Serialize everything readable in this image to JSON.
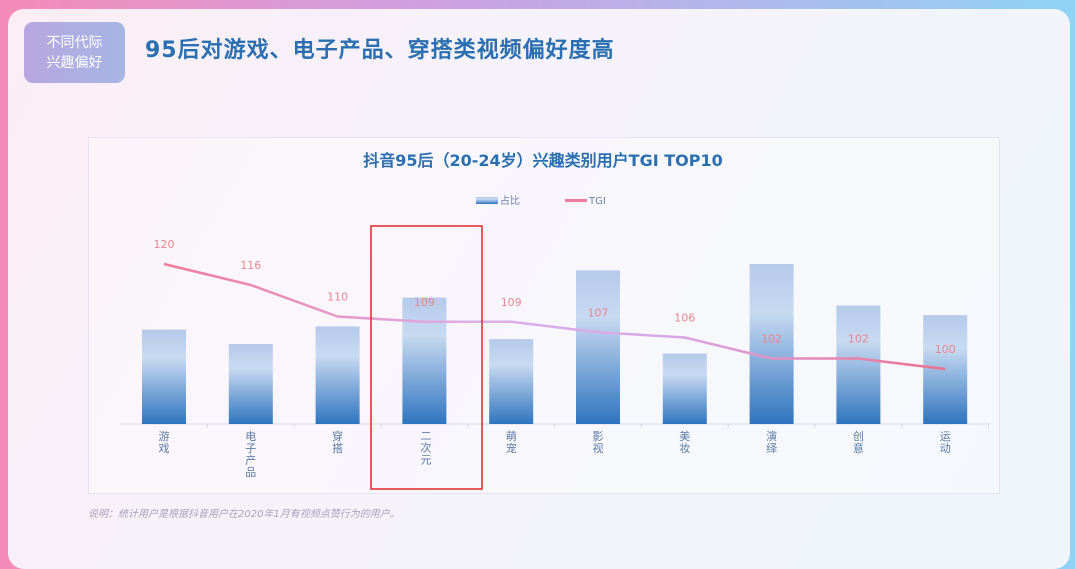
{
  "header": {
    "tag_line1": "不同代际",
    "tag_line2": "兴趣偏好",
    "title": "95后对游戏、电子产品、穿搭类视频偏好度高"
  },
  "chart_data": {
    "type": "bar+line",
    "title": "抖音95后（20-24岁）兴趣类别用户TGI TOP10",
    "legend": [
      "占比",
      "TGI"
    ],
    "legend_position": "top",
    "categories": [
      "游戏",
      "电子产品",
      "穿搭",
      "二次元",
      "萌宠",
      "影视",
      "美妆",
      "演绎",
      "创意",
      "运动"
    ],
    "category_labels": [
      [
        "游",
        "戏"
      ],
      [
        "电",
        "子",
        "产",
        "品"
      ],
      [
        "穿",
        "搭"
      ],
      [
        "二",
        "次",
        "元"
      ],
      [
        "萌",
        "宠"
      ],
      [
        "影",
        "视"
      ],
      [
        "美",
        "妆"
      ],
      [
        "演",
        "绎"
      ],
      [
        "创",
        "意"
      ],
      [
        "运",
        "动"
      ]
    ],
    "series": [
      {
        "name": "占比",
        "type": "bar",
        "values": [
          0.59,
          0.5,
          0.61,
          0.79,
          0.53,
          0.96,
          0.44,
          1.0,
          0.74,
          0.68
        ]
      },
      {
        "name": "TGI",
        "type": "line",
        "values": [
          120,
          116,
          110,
          109,
          109,
          107,
          106,
          102,
          102,
          100
        ]
      }
    ],
    "grid": false,
    "highlighted_category": "二次元",
    "colors": {
      "bar_top": "#b5c9ea",
      "bar_bottom": "#2f74bf",
      "line_start": "#f07c9b",
      "line_mid": "#d8a8e6",
      "line_end": "#ee6f8c",
      "label": "#e8868f",
      "highlight_box": "#e0262a",
      "title": "#2a6fb0"
    }
  },
  "footnote": "说明：统计用户是根据抖音用户在2020年1月有视频点赞行为的用户。"
}
